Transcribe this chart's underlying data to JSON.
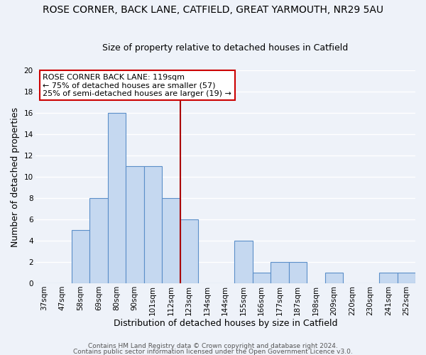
{
  "title": "ROSE CORNER, BACK LANE, CATFIELD, GREAT YARMOUTH, NR29 5AU",
  "subtitle": "Size of property relative to detached houses in Catfield",
  "xlabel": "Distribution of detached houses by size in Catfield",
  "ylabel": "Number of detached properties",
  "bar_labels": [
    "37sqm",
    "47sqm",
    "58sqm",
    "69sqm",
    "80sqm",
    "90sqm",
    "101sqm",
    "112sqm",
    "123sqm",
    "134sqm",
    "144sqm",
    "155sqm",
    "166sqm",
    "177sqm",
    "187sqm",
    "198sqm",
    "209sqm",
    "220sqm",
    "230sqm",
    "241sqm",
    "252sqm"
  ],
  "bar_values": [
    0,
    0,
    5,
    8,
    16,
    11,
    11,
    8,
    6,
    0,
    0,
    4,
    1,
    2,
    2,
    0,
    1,
    0,
    0,
    1,
    1
  ],
  "bar_color": "#c5d8f0",
  "bar_edge_color": "#5b8fc9",
  "ylim": [
    0,
    20
  ],
  "yticks": [
    0,
    2,
    4,
    6,
    8,
    10,
    12,
    14,
    16,
    18,
    20
  ],
  "vline_x_index": 7,
  "vline_color": "#aa0000",
  "annotation_title": "ROSE CORNER BACK LANE: 119sqm",
  "annotation_line1": "← 75% of detached houses are smaller (57)",
  "annotation_line2": "25% of semi-detached houses are larger (19) →",
  "annotation_box_color": "#ffffff",
  "annotation_box_edge": "#cc0000",
  "footer1": "Contains HM Land Registry data © Crown copyright and database right 2024.",
  "footer2": "Contains public sector information licensed under the Open Government Licence v3.0.",
  "background_color": "#eef2f9",
  "grid_color": "#ffffff",
  "title_fontsize": 10,
  "subtitle_fontsize": 9,
  "axis_label_fontsize": 9,
  "tick_fontsize": 7.5,
  "footer_fontsize": 6.5
}
